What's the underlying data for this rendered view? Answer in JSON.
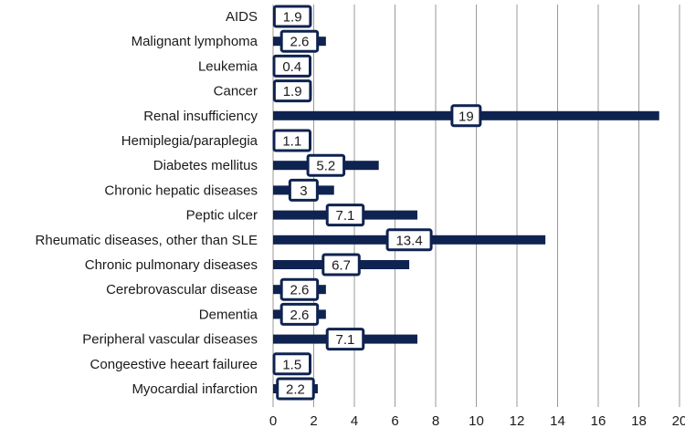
{
  "chart_data": {
    "type": "bar",
    "orientation": "horizontal",
    "title": "",
    "xlabel": "",
    "ylabel": "",
    "categories": [
      "AIDS",
      "Malignant lymphoma",
      "Leukemia",
      "Cancer",
      "Renal insufficiency",
      "Hemiplegia/paraplegia",
      "Diabetes mellitus",
      "Chronic hepatic diseases",
      "Peptic ulcer",
      "Rheumatic diseases, other than SLE",
      "Chronic pulmonary diseases",
      "Cerebrovascular disease",
      "Dementia",
      "Peripheral vascular diseases",
      "Congeestive heeart failuree",
      "Myocardial infarction"
    ],
    "values": [
      1.9,
      2.6,
      0.4,
      1.9,
      19,
      1.1,
      5.2,
      3,
      7.1,
      13.4,
      6.7,
      2.6,
      2.6,
      7.1,
      1.5,
      2.2
    ],
    "data_labels": [
      "1.9",
      "2.6",
      "0.4",
      "1.9",
      "19",
      "1.1",
      "5.2",
      "3",
      "7.1",
      "13.4",
      "6.7",
      "2.6",
      "2.6",
      "7.1",
      "1.5",
      "2.2"
    ],
    "xlim": [
      0,
      20
    ],
    "x_ticks": [
      0,
      2,
      4,
      6,
      8,
      10,
      12,
      14,
      16,
      18,
      20
    ],
    "x_tick_labels": [
      "0",
      "2",
      "4",
      "6",
      "8",
      "10",
      "12",
      "14",
      "16",
      "18",
      "20"
    ],
    "grid": "vertical",
    "legend": "none",
    "colors": {
      "bar": "#0f2350",
      "grid": "#9a9a9a",
      "label_box_border": "#0f2350",
      "label_box_fill": "#ffffff"
    }
  }
}
